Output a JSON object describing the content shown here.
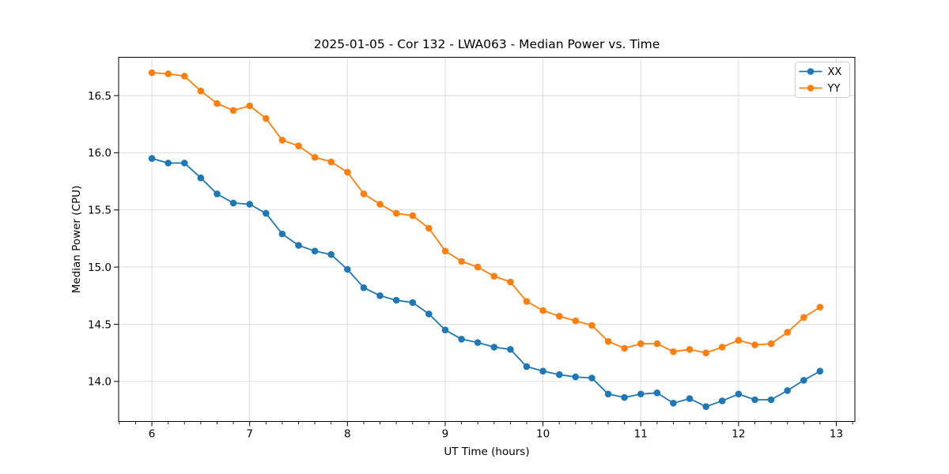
{
  "chart_data": {
    "type": "line",
    "title": "2025-01-05 - Cor 132 - LWA063 - Median Power vs. Time",
    "xlabel": "UT Time (hours)",
    "ylabel": "Median Power (CPU)",
    "xlim": [
      5.66,
      13.19
    ],
    "ylim": [
      13.65,
      16.835
    ],
    "xticks": [
      6,
      7,
      8,
      9,
      10,
      11,
      12,
      13
    ],
    "yticks": [
      14.0,
      14.5,
      15.0,
      15.5,
      16.0,
      16.5
    ],
    "x_minor_tick_step_hours": 0.1667,
    "grid": true,
    "legend_position": "upper right",
    "marker": "circle",
    "x": [
      6.0,
      6.167,
      6.333,
      6.5,
      6.667,
      6.833,
      7.0,
      7.167,
      7.333,
      7.5,
      7.667,
      7.833,
      8.0,
      8.167,
      8.333,
      8.5,
      8.667,
      8.833,
      9.0,
      9.167,
      9.333,
      9.5,
      9.667,
      9.833,
      10.0,
      10.167,
      10.333,
      10.5,
      10.667,
      10.833,
      11.0,
      11.167,
      11.333,
      11.5,
      11.667,
      11.833,
      12.0,
      12.167,
      12.333,
      12.5,
      12.667,
      12.833
    ],
    "series": [
      {
        "name": "XX",
        "color": "#1f77b4",
        "values": [
          15.95,
          15.91,
          15.91,
          15.78,
          15.64,
          15.56,
          15.55,
          15.47,
          15.29,
          15.19,
          15.14,
          15.11,
          14.98,
          14.82,
          14.75,
          14.71,
          14.69,
          14.59,
          14.45,
          14.37,
          14.34,
          14.3,
          14.28,
          14.13,
          14.09,
          14.06,
          14.04,
          14.03,
          13.89,
          13.86,
          13.89,
          13.9,
          13.81,
          13.85,
          13.78,
          13.83,
          13.89,
          13.84,
          13.84,
          13.92,
          14.01,
          14.09
        ]
      },
      {
        "name": "YY",
        "color": "#ff7f0e",
        "values": [
          16.7,
          16.69,
          16.67,
          16.54,
          16.43,
          16.37,
          16.41,
          16.3,
          16.11,
          16.06,
          15.96,
          15.92,
          15.83,
          15.64,
          15.55,
          15.47,
          15.45,
          15.34,
          15.14,
          15.05,
          15.0,
          14.92,
          14.87,
          14.7,
          14.62,
          14.57,
          14.53,
          14.49,
          14.35,
          14.29,
          14.33,
          14.33,
          14.26,
          14.28,
          14.25,
          14.3,
          14.36,
          14.32,
          14.33,
          14.43,
          14.56,
          14.65
        ]
      }
    ],
    "colors": {
      "grid": "#d9d9d9",
      "spine": "#000000",
      "text": "#000000",
      "legend_border": "#cccccc",
      "legend_background": "#ffffff"
    }
  }
}
